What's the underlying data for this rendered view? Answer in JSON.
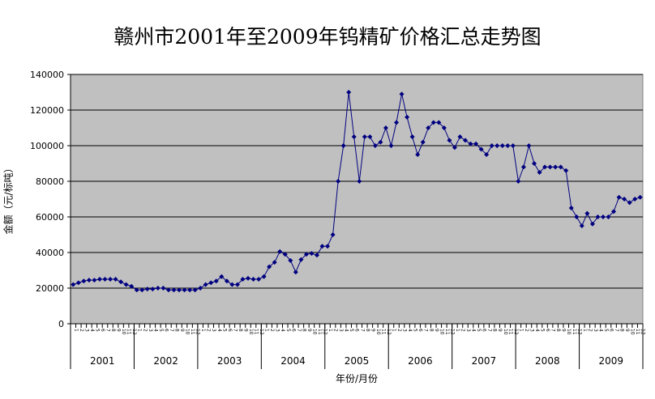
{
  "chart_data": {
    "type": "line",
    "title": "赣州市2001年至2009年钨精矿价格汇总走势图",
    "xlabel": "年份/月份",
    "ylabel": "金额（元/标吨）",
    "ylim": [
      0,
      140000
    ],
    "yticks": [
      0,
      20000,
      40000,
      60000,
      80000,
      100000,
      120000,
      140000
    ],
    "grid": true,
    "legend": "none",
    "years": [
      "2001",
      "2002",
      "2003",
      "2004",
      "2005",
      "2006",
      "2007",
      "2008",
      "2009"
    ],
    "months": [
      "1",
      "2",
      "3",
      "4",
      "5",
      "6",
      "7",
      "8",
      "9",
      "10",
      "11",
      "12"
    ],
    "series": [
      {
        "color": "#000080",
        "values": [
          22000,
          23000,
          24000,
          24500,
          24500,
          25000,
          25000,
          25000,
          25000,
          23500,
          22000,
          21000,
          19000,
          19000,
          19500,
          19500,
          20000,
          20000,
          19000,
          19000,
          19000,
          19000,
          19000,
          19000,
          20000,
          22000,
          23000,
          24000,
          26500,
          24000,
          22000,
          22000,
          25000,
          25500,
          25000,
          25000,
          26500,
          32000,
          34500,
          40500,
          39000,
          35500,
          29000,
          36000,
          39000,
          39500,
          38500,
          43500,
          43500,
          50000,
          80000,
          100000,
          130000,
          105000,
          80000,
          105000,
          105000,
          100000,
          102000,
          110000,
          100000,
          113000,
          129000,
          116000,
          105000,
          95000,
          102000,
          110000,
          113000,
          113000,
          110000,
          103000,
          99000,
          105000,
          103000,
          101000,
          101000,
          98000,
          95000,
          100000,
          100000,
          100000,
          100000,
          100000,
          80000,
          88000,
          100000,
          90000,
          85000,
          88000,
          88000,
          88000,
          88000,
          86000,
          65000,
          60000,
          55000,
          62000,
          56000,
          60000,
          60000,
          60000,
          63000,
          71000,
          70000,
          68000,
          70000,
          71000
        ]
      }
    ],
    "plot_background": "#C0C0C0"
  }
}
